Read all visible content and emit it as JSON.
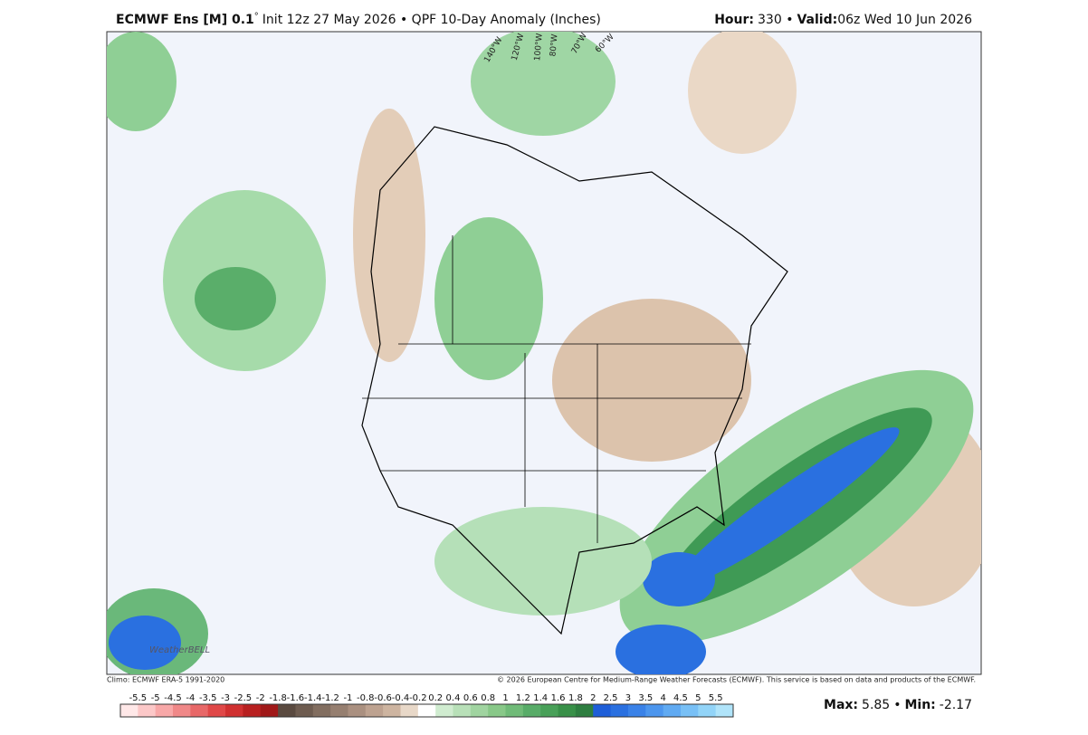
{
  "header": {
    "model": "ECMWF Ens [M] 0.1",
    "degree": "°",
    "init": "Init 12z 27 May 2026 • QPF 10-Day Anomaly (Inches)",
    "hour_label": "Hour:",
    "hour": "330 •",
    "valid_label": "Valid:",
    "valid": "06z Wed 10 Jun 2026"
  },
  "map": {
    "longitude_labels": [
      "140°W",
      "120°W",
      "100°W",
      "80°W",
      "70°W",
      "60°W"
    ],
    "logo": "WeatherBELL"
  },
  "footer": {
    "climo": "Climo: ECMWF ERA-5 1991-2020",
    "credit": "© 2026 European Centre for Medium-Range Weather Forecasts (ECMWF). This service is based on data and products of the ECMWF."
  },
  "colorbar": {
    "levels": [
      -5.5,
      -5,
      -4.5,
      -4,
      -3.5,
      -3,
      -2.5,
      -2,
      -1.8,
      -1.6,
      -1.4,
      -1.2,
      -1,
      -0.8,
      -0.6,
      -0.4,
      -0.2,
      0.2,
      0.4,
      0.6,
      0.8,
      1,
      1.2,
      1.4,
      1.6,
      1.8,
      2,
      2.5,
      3,
      3.5,
      4,
      4.5,
      5,
      5.5
    ],
    "colors": [
      "#ffe8e8",
      "#fcc8c8",
      "#f8a8a8",
      "#f08888",
      "#e86868",
      "#e04848",
      "#d03030",
      "#b82020",
      "#a01818",
      "#5a4a40",
      "#6e5c50",
      "#826e60",
      "#967f70",
      "#aa9080",
      "#bda290",
      "#cdb4a0",
      "#e8d8c8",
      "#ffffff",
      "#d0ecd0",
      "#b8e0b8",
      "#a0d4a0",
      "#88c888",
      "#70bb78",
      "#58ac68",
      "#48a058",
      "#389048",
      "#2e7e40",
      "#1e5ed8",
      "#2a70e0",
      "#3a82e8",
      "#4c96ee",
      "#60aaf2",
      "#78c0f6",
      "#92d4f8",
      "#b0e4fa"
    ]
  },
  "stats": {
    "max_label": "Max:",
    "max": "5.85",
    "sep": "•",
    "min_label": "Min:",
    "min": "-2.17"
  }
}
